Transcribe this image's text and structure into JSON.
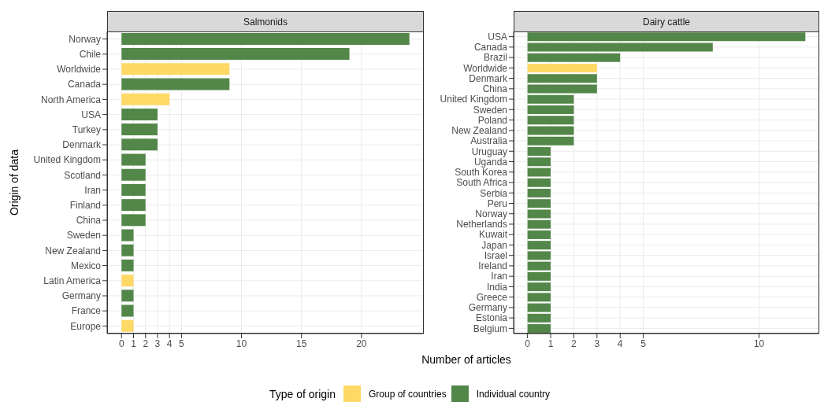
{
  "chart_data": [
    {
      "type": "bar",
      "orientation": "horizontal",
      "stacked": true,
      "title": "Salmonids",
      "xlabel": "Number of articles",
      "ylabel": "Origin of data",
      "legend_title": "Type of origin",
      "legend": "bottom",
      "grid": true,
      "categories": [
        "Norway",
        "Chile",
        "Worldwide",
        "Canada",
        "North America",
        "USA",
        "Turkey",
        "Denmark",
        "United Kingdom",
        "Scotland",
        "Iran",
        "Finland",
        "China",
        "Sweden",
        "New Zealand",
        "Mexico",
        "Latin America",
        "Germany",
        "France",
        "Europe"
      ],
      "series": [
        {
          "name": "Group of countries",
          "color": "#ffd966",
          "values": [
            null,
            null,
            9,
            null,
            4,
            null,
            null,
            null,
            null,
            null,
            null,
            null,
            null,
            null,
            null,
            null,
            1,
            null,
            null,
            1
          ]
        },
        {
          "name": "Individual country",
          "color": "#538749",
          "values": [
            24,
            19,
            null,
            9,
            null,
            3,
            3,
            3,
            2,
            2,
            2,
            2,
            2,
            1,
            1,
            1,
            null,
            1,
            1,
            null
          ]
        }
      ],
      "xlim": [
        -1.2,
        25.2
      ],
      "xticks": [
        0,
        1,
        2,
        3,
        4,
        5,
        10,
        15,
        20
      ]
    },
    {
      "type": "bar",
      "orientation": "horizontal",
      "stacked": true,
      "title": "Dairy cattle",
      "grid": true,
      "categories": [
        "USA",
        "Canada",
        "Brazil",
        "Worldwide",
        "Denmark",
        "China",
        "United Kingdom",
        "Sweden",
        "Poland",
        "New Zealand",
        "Australia",
        "Uruguay",
        "Uganda",
        "South Korea",
        "South Africa",
        "Serbia",
        "Peru",
        "Norway",
        "Netherlands",
        "Kuwait",
        "Japan",
        "Israel",
        "Ireland",
        "Iran",
        "India",
        "Greece",
        "Germany",
        "Estonia",
        "Belgium"
      ],
      "series": [
        {
          "color": "#ffd966",
          "values": [
            null,
            null,
            null,
            3,
            null,
            null,
            null,
            null,
            null,
            null,
            null,
            null,
            null,
            null,
            null,
            null,
            null,
            null,
            null,
            null,
            null,
            null,
            null,
            null,
            null,
            null,
            null,
            null,
            null
          ]
        },
        {
          "color": "#538749",
          "values": [
            12,
            8,
            4,
            null,
            3,
            3,
            2,
            2,
            2,
            2,
            2,
            1,
            1,
            1,
            1,
            1,
            1,
            1,
            1,
            1,
            1,
            1,
            1,
            1,
            1,
            1,
            1,
            1,
            1
          ]
        }
      ],
      "xlim": [
        -0.6,
        12.6
      ],
      "xticks": [
        0,
        1,
        2,
        3,
        4,
        5,
        10
      ]
    }
  ]
}
